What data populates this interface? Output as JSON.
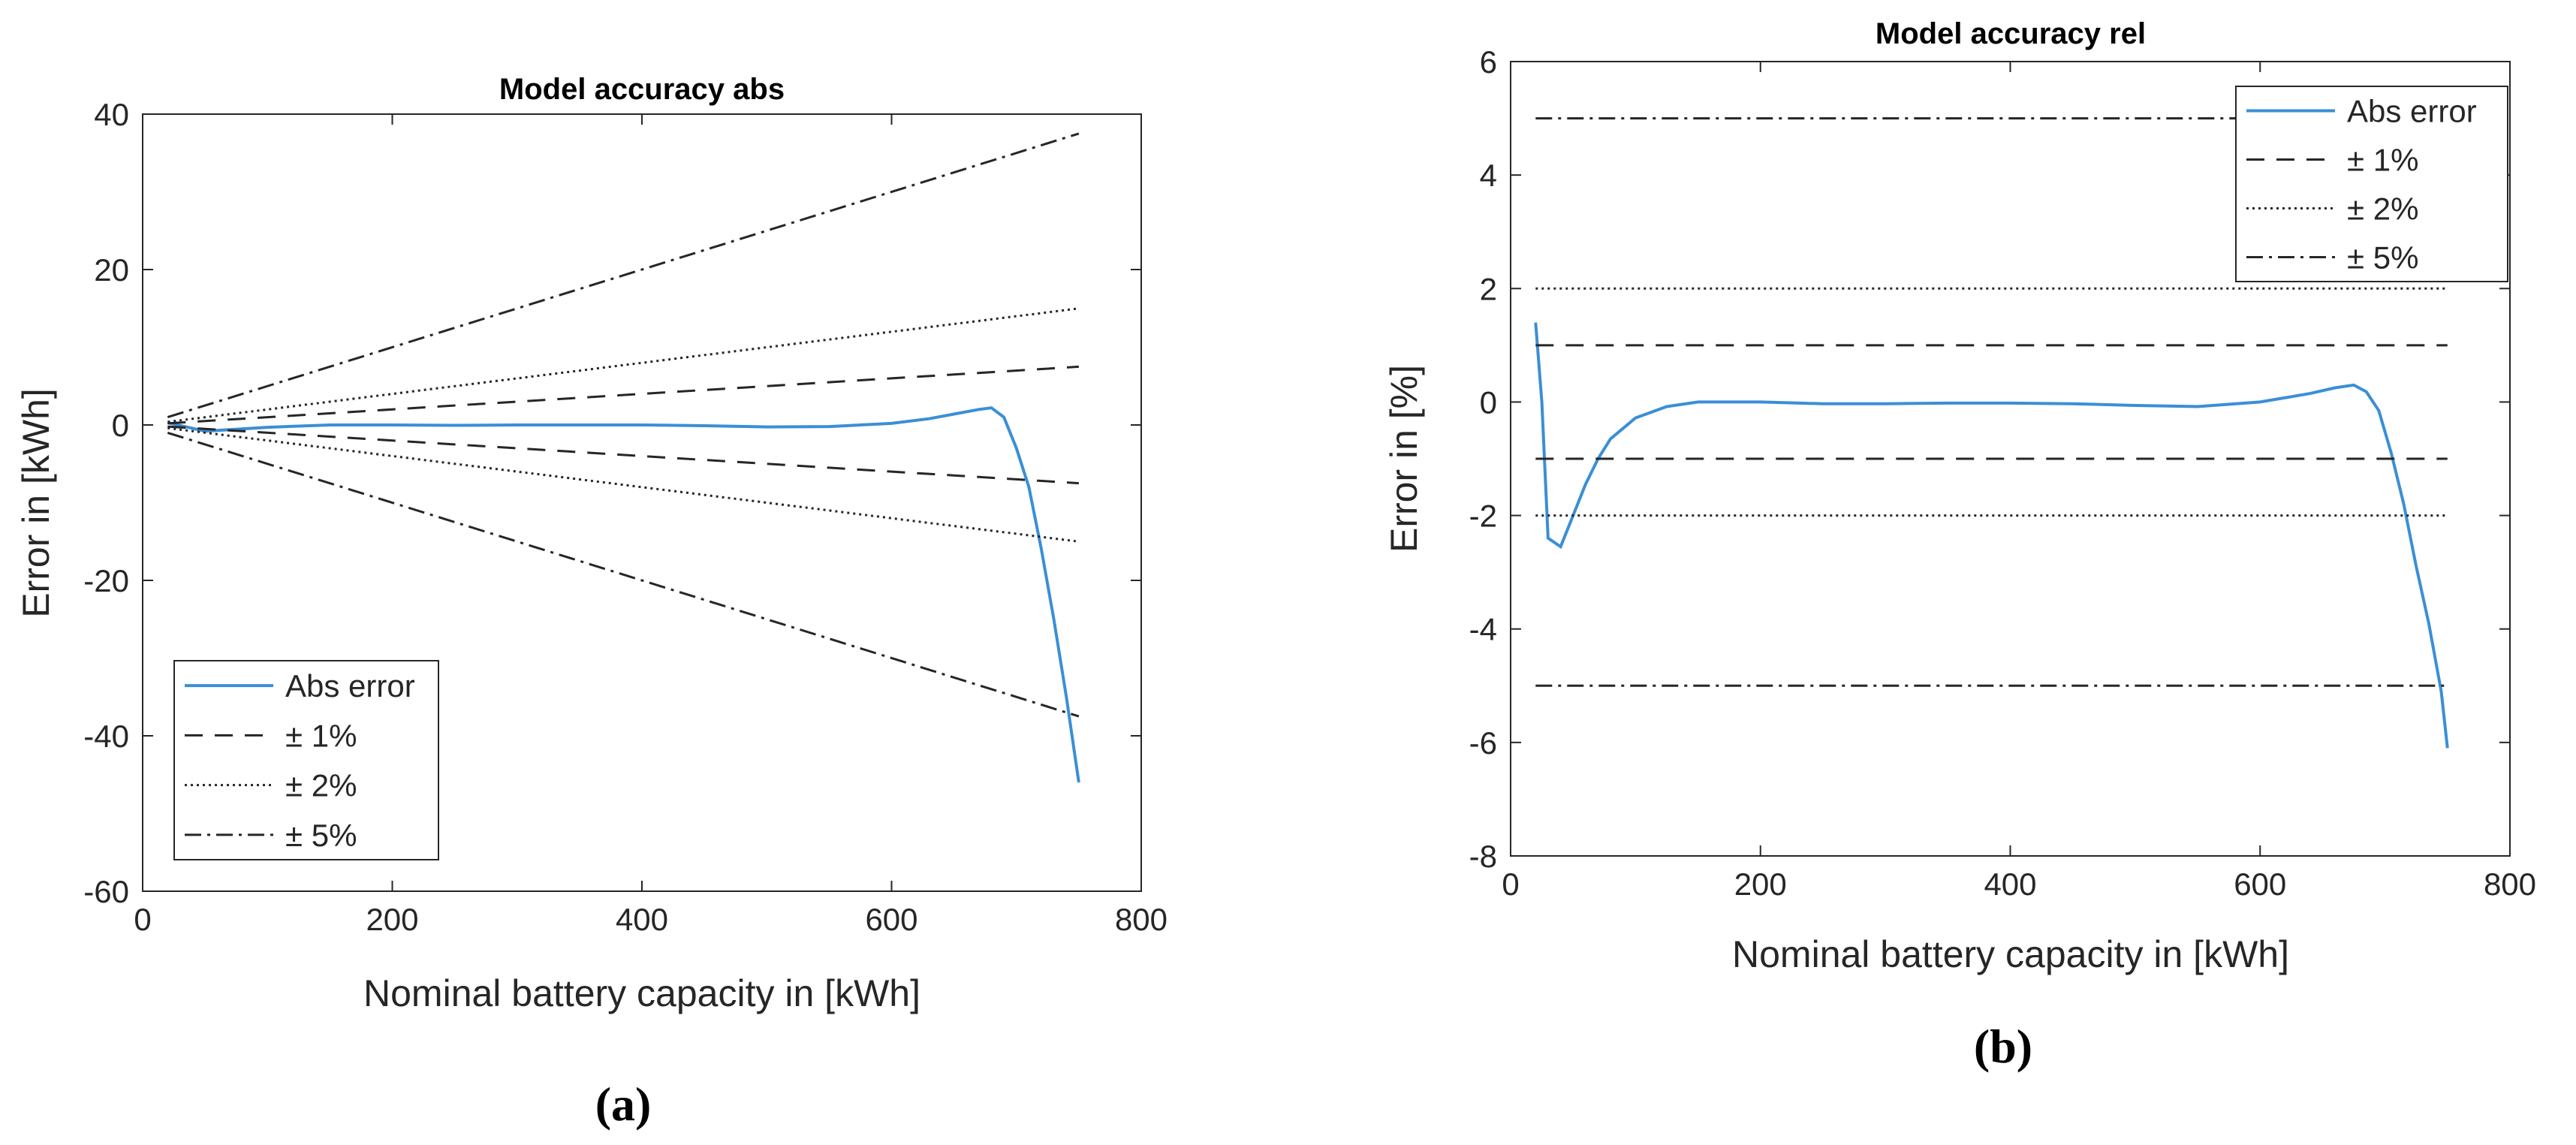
{
  "chart_data": [
    {
      "type": "line",
      "panel_label": "(a)",
      "title": "Model accuracy abs",
      "xlabel": "Nominal battery capacity in [kWh]",
      "ylabel": "Error in [kWh]",
      "xlim": [
        0,
        800
      ],
      "ylim": [
        -60,
        40
      ],
      "xticks": [
        0,
        200,
        400,
        600,
        800
      ],
      "yticks": [
        -60,
        -40,
        -20,
        0,
        20,
        40
      ],
      "legend_position": "bottom-left",
      "series": [
        {
          "name": "Abs error",
          "style": "solid",
          "color": "#3a8fd6",
          "x": [
            20,
            50,
            100,
            150,
            200,
            250,
            300,
            350,
            400,
            450,
            500,
            550,
            600,
            630,
            650,
            670,
            680,
            690,
            700,
            710,
            720,
            730,
            740,
            750
          ],
          "y": [
            0.3,
            -0.8,
            -0.3,
            0.0,
            0.0,
            -0.05,
            0.0,
            0.0,
            0.0,
            -0.1,
            -0.25,
            -0.2,
            0.2,
            0.8,
            1.4,
            2.0,
            2.2,
            1.0,
            -3.0,
            -8.0,
            -16.0,
            -25.0,
            -35.0,
            -46.0
          ]
        },
        {
          "name": "± 1%",
          "style": "dashed",
          "color": "#262626",
          "x": [
            20,
            750
          ],
          "y": [
            0.2,
            7.5
          ]
        },
        {
          "name": "± 1%",
          "style": "dashed",
          "color": "#262626",
          "legend": false,
          "x": [
            20,
            750
          ],
          "y": [
            -0.2,
            -7.5
          ]
        },
        {
          "name": "± 2%",
          "style": "dotted",
          "color": "#262626",
          "x": [
            20,
            750
          ],
          "y": [
            0.4,
            15.0
          ]
        },
        {
          "name": "± 2%",
          "style": "dotted",
          "color": "#262626",
          "legend": false,
          "x": [
            20,
            750
          ],
          "y": [
            -0.4,
            -15.0
          ]
        },
        {
          "name": "± 5%",
          "style": "dashdot",
          "color": "#262626",
          "x": [
            20,
            750
          ],
          "y": [
            1.0,
            37.5
          ]
        },
        {
          "name": "± 5%",
          "style": "dashdot",
          "color": "#262626",
          "legend": false,
          "x": [
            20,
            750
          ],
          "y": [
            -1.0,
            -37.5
          ]
        }
      ]
    },
    {
      "type": "line",
      "panel_label": "(b)",
      "title": "Model accuracy rel",
      "xlabel": "Nominal battery capacity in [kWh]",
      "ylabel": "Error in [%]",
      "xlim": [
        0,
        800
      ],
      "ylim": [
        -8,
        6
      ],
      "xticks": [
        0,
        200,
        400,
        600,
        800
      ],
      "yticks": [
        -8,
        -6,
        -4,
        -2,
        0,
        2,
        4,
        6
      ],
      "legend_position": "top-right",
      "series": [
        {
          "name": "Abs error",
          "style": "solid",
          "color": "#3a8fd6",
          "x": [
            20,
            25,
            30,
            40,
            50,
            60,
            70,
            80,
            100,
            125,
            150,
            200,
            250,
            300,
            350,
            400,
            450,
            500,
            550,
            600,
            640,
            660,
            675,
            685,
            695,
            705,
            715,
            725,
            735,
            745,
            750
          ],
          "y": [
            1.4,
            0.0,
            -2.4,
            -2.55,
            -2.0,
            -1.45,
            -1.0,
            -0.65,
            -0.28,
            -0.08,
            0.0,
            0.0,
            -0.03,
            -0.03,
            -0.02,
            -0.02,
            -0.03,
            -0.06,
            -0.08,
            0.0,
            0.15,
            0.25,
            0.3,
            0.18,
            -0.15,
            -0.9,
            -1.8,
            -2.9,
            -3.9,
            -5.1,
            -6.1
          ]
        },
        {
          "name": "± 1%",
          "style": "dashed",
          "color": "#262626",
          "x": [
            20,
            750
          ],
          "y": [
            1,
            1
          ]
        },
        {
          "name": "± 1%",
          "style": "dashed",
          "color": "#262626",
          "legend": false,
          "x": [
            20,
            750
          ],
          "y": [
            -1,
            -1
          ]
        },
        {
          "name": "± 2%",
          "style": "dotted",
          "color": "#262626",
          "x": [
            20,
            750
          ],
          "y": [
            2,
            2
          ]
        },
        {
          "name": "± 2%",
          "style": "dotted",
          "color": "#262626",
          "legend": false,
          "x": [
            20,
            750
          ],
          "y": [
            -2,
            -2
          ]
        },
        {
          "name": "± 5%",
          "style": "dashdot",
          "color": "#262626",
          "x": [
            20,
            750
          ],
          "y": [
            5,
            5
          ]
        },
        {
          "name": "± 5%",
          "style": "dashdot",
          "color": "#262626",
          "legend": false,
          "x": [
            20,
            750
          ],
          "y": [
            -5,
            -5
          ]
        }
      ]
    }
  ]
}
